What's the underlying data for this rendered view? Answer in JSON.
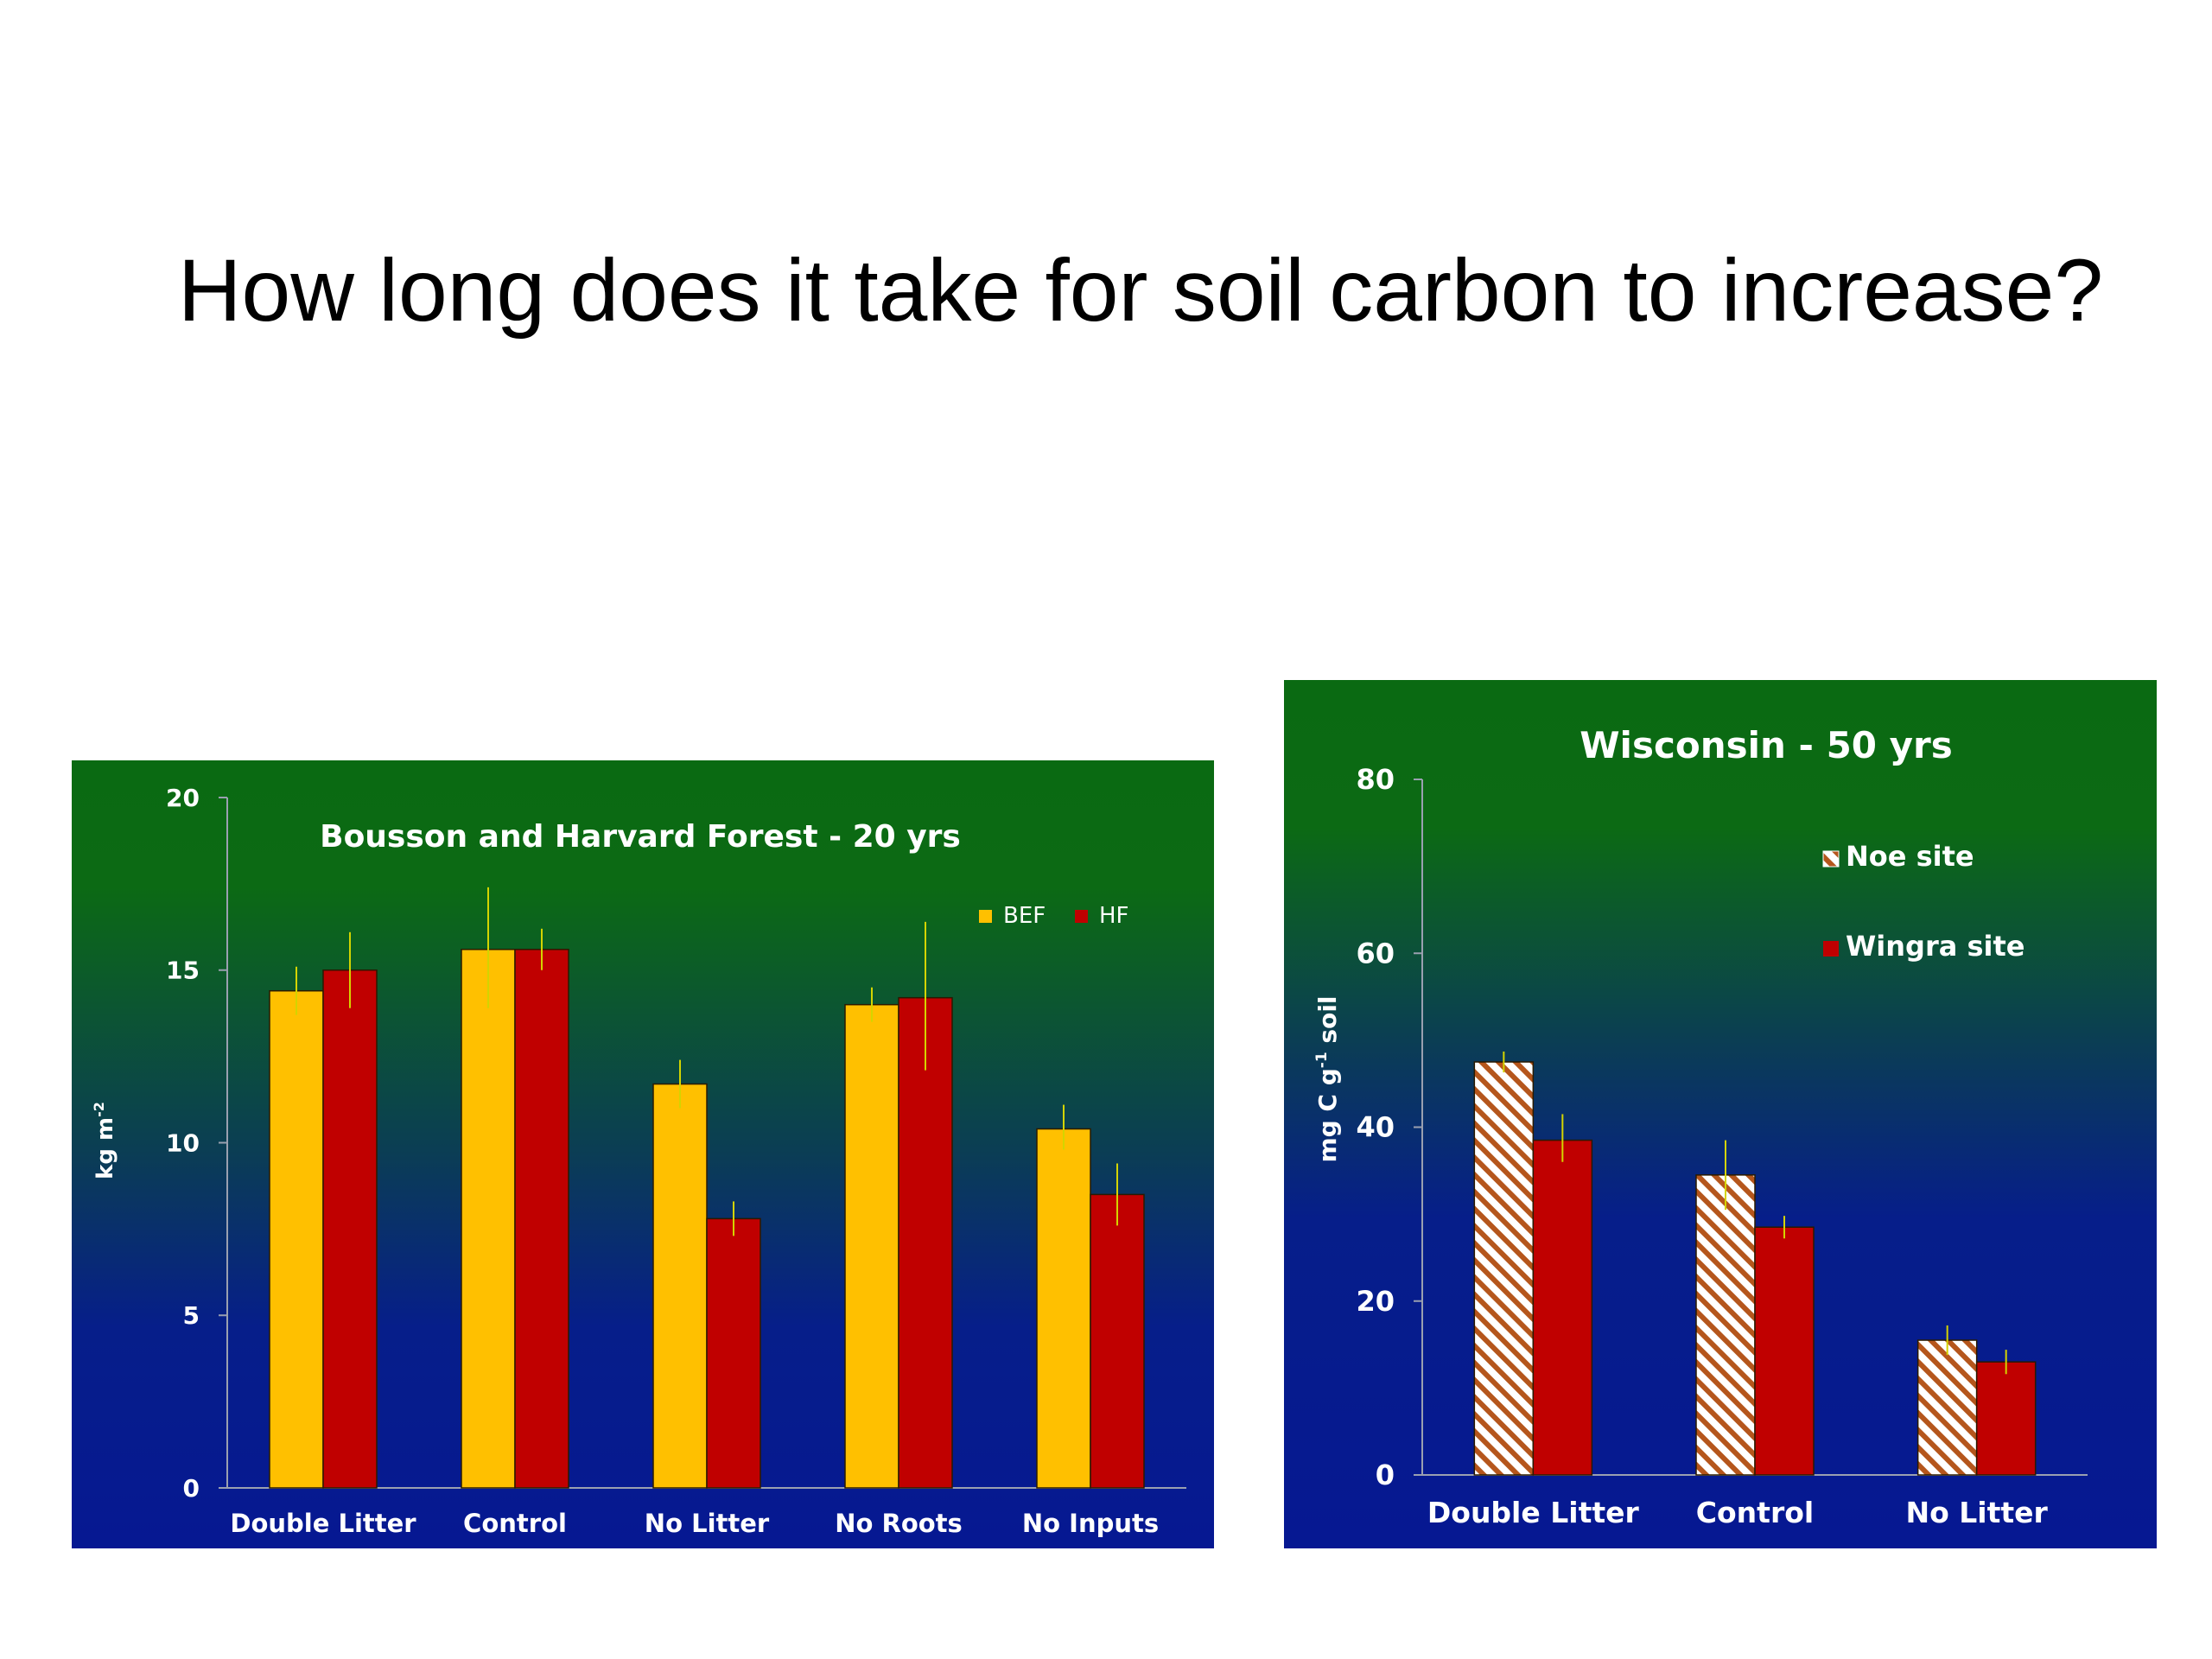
{
  "slide": {
    "title": "How long does it take for soil carbon to increase?"
  },
  "chart_data": [
    {
      "type": "bar",
      "title": "Bousson and Harvard Forest - 20 yrs",
      "xlabel": "",
      "ylabel": "kg m-2",
      "ylabel_main": "kg m",
      "ylabel_sup": "-2",
      "ylim": [
        0,
        20
      ],
      "yticks": [
        0,
        5,
        10,
        15,
        20
      ],
      "categories": [
        "Double Litter",
        "Control",
        "No Litter",
        "No Roots",
        "No Inputs"
      ],
      "legend_position": "top-right",
      "series": [
        {
          "name": "BEF",
          "color": "#ffc000",
          "pattern": "solid",
          "values": [
            14.4,
            15.6,
            11.7,
            14.0,
            10.4
          ],
          "err_low": [
            13.7,
            13.9,
            11.0,
            13.5,
            9.8
          ],
          "err_high": [
            15.1,
            17.4,
            12.4,
            14.5,
            11.1
          ]
        },
        {
          "name": "HF",
          "color": "#c00000",
          "pattern": "solid",
          "values": [
            15.0,
            15.6,
            7.8,
            14.2,
            8.5
          ],
          "err_low": [
            13.9,
            15.0,
            7.3,
            12.1,
            7.6
          ],
          "err_high": [
            16.1,
            16.2,
            8.3,
            16.4,
            9.4
          ]
        }
      ],
      "error_bar_color": "#d4d400"
    },
    {
      "type": "bar",
      "title": "Wisconsin - 50 yrs",
      "xlabel": "",
      "ylabel": "mg C g-1 soil",
      "ylabel_a": "mg C g",
      "ylabel_sup": "-1",
      "ylabel_b": " soil",
      "ylim": [
        0,
        80
      ],
      "yticks": [
        0,
        20,
        40,
        60,
        80
      ],
      "categories": [
        "Double Litter",
        "Control",
        "No Litter"
      ],
      "legend_position": "top-right",
      "series": [
        {
          "name": "Noe site",
          "color": "#b5561c",
          "pattern": "hatched",
          "values": [
            47.5,
            34.5,
            15.5
          ],
          "err_low": [
            46.3,
            30.5,
            13.8
          ],
          "err_high": [
            48.7,
            38.5,
            17.2
          ]
        },
        {
          "name": "Wingra site",
          "color": "#c00000",
          "pattern": "solid",
          "values": [
            38.5,
            28.5,
            13.0
          ],
          "err_low": [
            36.0,
            27.2,
            11.6
          ],
          "err_high": [
            41.5,
            29.8,
            14.4
          ]
        }
      ],
      "error_bar_color": "#d4d400"
    }
  ]
}
